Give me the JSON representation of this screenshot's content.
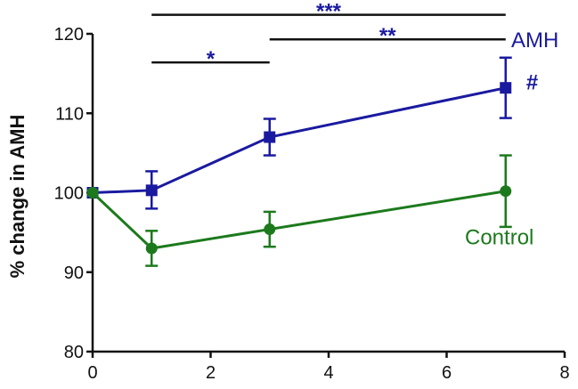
{
  "chart_data": {
    "type": "line",
    "title": "",
    "xlabel": "",
    "ylabel": "% change in AMH",
    "xlim": [
      0,
      8
    ],
    "ylim": [
      80,
      120
    ],
    "x_ticks": [
      "0",
      "2",
      "4",
      "6",
      "8"
    ],
    "y_ticks": [
      "80",
      "90",
      "100",
      "110",
      "120"
    ],
    "grid": false,
    "series": [
      {
        "name": "AMH",
        "color": "#1a1aa0",
        "marker": "square",
        "points": [
          {
            "x": 0,
            "y": 100.0,
            "err_low": 0.0,
            "err_high": 0.0
          },
          {
            "x": 1,
            "y": 100.3,
            "err_low": 2.3,
            "err_high": 2.4
          },
          {
            "x": 3,
            "y": 107.0,
            "err_low": 2.3,
            "err_high": 2.3
          },
          {
            "x": 7,
            "y": 113.2,
            "err_low": 3.8,
            "err_high": 3.8
          }
        ]
      },
      {
        "name": "Control",
        "color": "#1c7a1c",
        "marker": "circle",
        "points": [
          {
            "x": 0,
            "y": 100.0,
            "err_low": 0.0,
            "err_high": 0.0
          },
          {
            "x": 1,
            "y": 93.0,
            "err_low": 2.2,
            "err_high": 2.2
          },
          {
            "x": 3,
            "y": 95.4,
            "err_low": 2.2,
            "err_high": 2.2
          },
          {
            "x": 7,
            "y": 100.2,
            "err_low": 4.5,
            "err_high": 4.5
          }
        ]
      }
    ],
    "annotations": {
      "significance": [
        {
          "label": "***",
          "x_start": 1,
          "x_end": 7,
          "y": 122.4
        },
        {
          "label": "*",
          "x_start": 1,
          "x_end": 3,
          "y": 116.4
        },
        {
          "label": "**",
          "x_start": 3,
          "x_end": 7,
          "y": 119.3
        }
      ],
      "point_marks": [
        {
          "label": "#",
          "x": 7.45,
          "y": 114.1,
          "series": "AMH"
        }
      ]
    }
  }
}
